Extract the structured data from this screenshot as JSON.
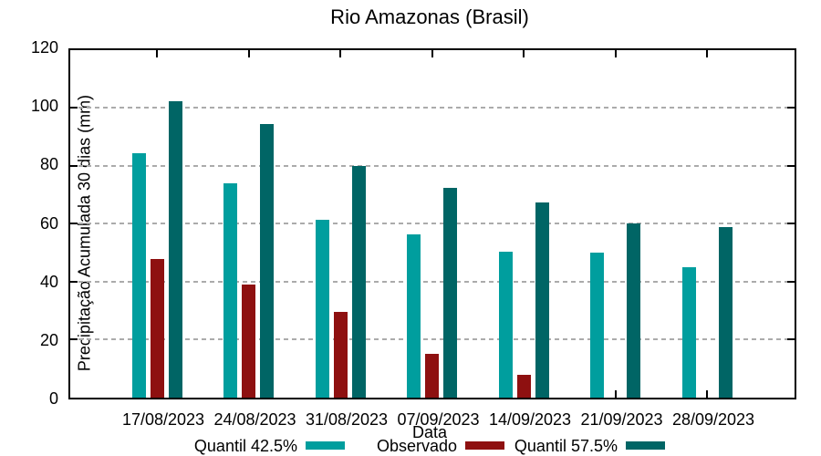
{
  "chart_data": {
    "type": "bar",
    "title": "Rio Amazonas (Brasil)",
    "xlabel": "Data",
    "ylabel": "Precipitação Acumulada 30 dias (mm)",
    "ylim": [
      0,
      120
    ],
    "ytick_step": 20,
    "grid": true,
    "legend_position": "bottom",
    "categories": [
      "17/08/2023",
      "24/08/2023",
      "31/08/2023",
      "07/09/2023",
      "14/09/2023",
      "21/09/2023",
      "28/09/2023"
    ],
    "series": [
      {
        "name": "Quantil 42.5%",
        "color": "#009E9E",
        "values": [
          84.5,
          74,
          61.5,
          56.5,
          50.5,
          50,
          45
        ]
      },
      {
        "name": "Observado",
        "color": "#8E1010",
        "values": [
          48,
          39,
          29.5,
          15,
          8,
          null,
          null
        ]
      },
      {
        "name": "Quantil 57.5%",
        "color": "#006565",
        "values": [
          102.5,
          94.5,
          80,
          72.5,
          67.5,
          60,
          59
        ]
      }
    ]
  }
}
